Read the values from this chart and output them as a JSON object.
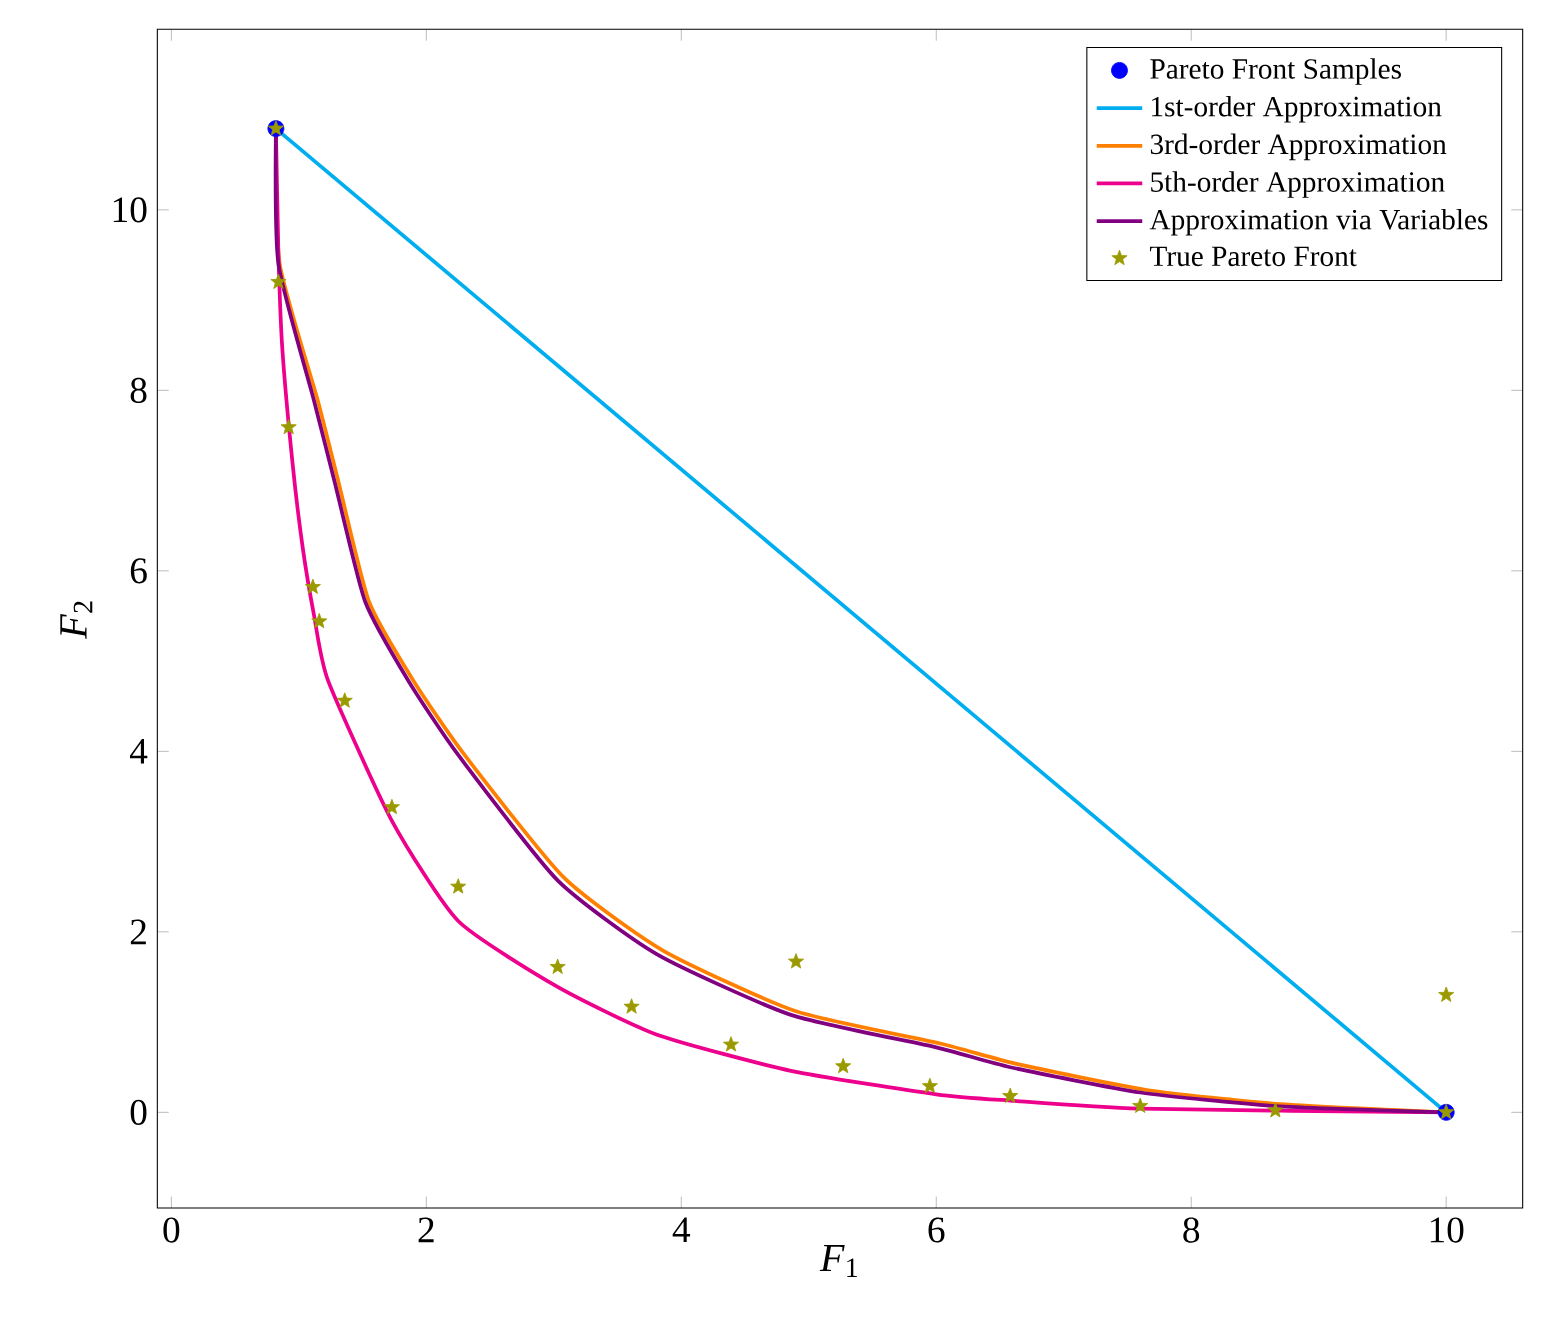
{
  "chart_data": {
    "type": "line",
    "xlabel": "*F*$_{1}$",
    "ylabel": "*F*$_{2}$",
    "xlim": [
      -0.11,
      10.6
    ],
    "ylim": [
      -1.06,
      12
    ],
    "xticks": [
      0,
      2,
      4,
      6,
      8,
      10
    ],
    "yticks": [
      0,
      2,
      4,
      6,
      8,
      10
    ],
    "grid": false,
    "legend": "top right",
    "series": [
      {
        "name": "Pareto Front Samples",
        "type": "scatter",
        "marker": "circle",
        "color": "#0000ff",
        "x": [
          0.82,
          10
        ],
        "values": [
          10.9,
          0
        ]
      },
      {
        "name": "1st-order Approximation",
        "color": "#00aeef",
        "x": [
          0.82,
          10
        ],
        "values": [
          10.9,
          0
        ]
      },
      {
        "name": "3rd-order Approximation",
        "color": "#ff8000",
        "x": [
          0.82,
          0.85,
          1.15,
          1.31,
          1.55,
          1.9,
          2.3,
          3.08,
          3.86,
          4.9,
          6.04,
          6.62,
          7.64,
          8.7,
          10
        ],
        "values": [
          10.9,
          9.4,
          7.88,
          6.99,
          5.66,
          4.78,
          3.96,
          2.6,
          1.79,
          1.12,
          0.76,
          0.54,
          0.25,
          0.09,
          0
        ]
      },
      {
        "name": "5th-order Approximation",
        "color": "#ec008c",
        "x": [
          0.82,
          0.84,
          0.87,
          0.95,
          1.03,
          1.12,
          1.23,
          1.73,
          2.25,
          3.03,
          3.81,
          4.86,
          6.0,
          6.58,
          7.6,
          10
        ],
        "values": [
          10.9,
          9.5,
          8.47,
          7.2,
          6.26,
          5.5,
          4.78,
          3.23,
          2.12,
          1.39,
          0.86,
          0.46,
          0.2,
          0.13,
          0.04,
          0
        ]
      },
      {
        "name": "Approximation via Variables",
        "color": "#800080",
        "x": [
          0.82,
          0.84,
          1.12,
          1.28,
          1.52,
          1.86,
          2.25,
          3.03,
          3.81,
          4.86,
          6.0,
          6.58,
          7.6,
          8.66,
          10
        ],
        "values": [
          10.9,
          9.4,
          7.88,
          6.99,
          5.66,
          4.78,
          3.96,
          2.57,
          1.75,
          1.08,
          0.72,
          0.5,
          0.22,
          0.07,
          0
        ]
      },
      {
        "name": "True Pareto Front",
        "type": "scatter",
        "marker": "star",
        "color": "#9a9a00",
        "x": [
          0.82,
          0.84,
          0.92,
          1.11,
          1.16,
          1.36,
          1.73,
          2.25,
          3.03,
          3.61,
          4.39,
          5.27,
          5.95,
          6.58,
          7.6,
          8.66,
          10,
          4.9,
          10
        ],
        "values": [
          10.9,
          9.2,
          7.59,
          5.82,
          5.44,
          4.56,
          3.38,
          2.5,
          1.61,
          1.17,
          0.75,
          0.51,
          0.29,
          0.18,
          0.07,
          0.02,
          0,
          1.67,
          1.3
        ]
      }
    ]
  }
}
